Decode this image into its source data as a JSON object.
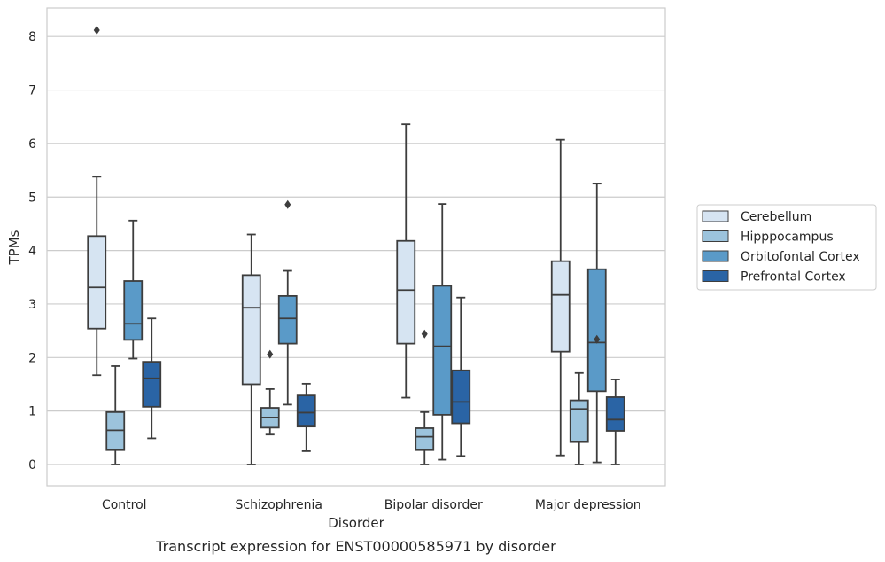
{
  "chart_data": {
    "type": "boxplot",
    "caption": "Transcript expression for ENST00000585971 by disorder",
    "xlabel": "Disorder",
    "ylabel": "TPMs",
    "ylim": [
      -0.4,
      8.55
    ],
    "yticks": [
      0,
      1,
      2,
      3,
      4,
      5,
      6,
      7,
      8
    ],
    "grid": true,
    "legend_position": "right",
    "categories": [
      "Control",
      "Schizophrenia",
      "Bipolar disorder",
      "Major depression"
    ],
    "series": [
      {
        "name": "Cerebellum",
        "color": "#d6e4f2",
        "boxes": [
          {
            "whislo": 1.67,
            "q1": 2.54,
            "med": 3.31,
            "q3": 4.27,
            "whishi": 5.38,
            "fliers": [
              8.12
            ]
          },
          {
            "whislo": 0.0,
            "q1": 1.5,
            "med": 2.93,
            "q3": 3.54,
            "whishi": 4.3,
            "fliers": []
          },
          {
            "whislo": 1.25,
            "q1": 2.26,
            "med": 3.26,
            "q3": 4.18,
            "whishi": 6.36,
            "fliers": []
          },
          {
            "whislo": 0.17,
            "q1": 2.11,
            "med": 3.17,
            "q3": 3.8,
            "whishi": 6.07,
            "fliers": []
          }
        ]
      },
      {
        "name": "Hipppocampus",
        "color": "#9cc3dc",
        "boxes": [
          {
            "whislo": 0.0,
            "q1": 0.27,
            "med": 0.64,
            "q3": 0.98,
            "whishi": 1.84,
            "fliers": []
          },
          {
            "whislo": 0.56,
            "q1": 0.69,
            "med": 0.88,
            "q3": 1.06,
            "whishi": 1.41,
            "fliers": [
              2.06
            ]
          },
          {
            "whislo": 0.0,
            "q1": 0.27,
            "med": 0.52,
            "q3": 0.68,
            "whishi": 0.98,
            "fliers": [
              2.44
            ]
          },
          {
            "whislo": 0.0,
            "q1": 0.42,
            "med": 1.04,
            "q3": 1.2,
            "whishi": 1.71,
            "fliers": []
          }
        ]
      },
      {
        "name": "Orbitofontal Cortex",
        "color": "#5a9ac8",
        "boxes": [
          {
            "whislo": 1.98,
            "q1": 2.33,
            "med": 2.63,
            "q3": 3.43,
            "whishi": 4.56,
            "fliers": []
          },
          {
            "whislo": 1.12,
            "q1": 2.26,
            "med": 2.73,
            "q3": 3.15,
            "whishi": 3.62,
            "fliers": [
              4.86
            ]
          },
          {
            "whislo": 0.09,
            "q1": 0.93,
            "med": 2.21,
            "q3": 3.34,
            "whishi": 4.87,
            "fliers": []
          },
          {
            "whislo": 0.04,
            "q1": 1.37,
            "med": 2.28,
            "q3": 3.65,
            "whishi": 5.25,
            "fliers": [
              2.34
            ]
          }
        ]
      },
      {
        "name": "Prefrontal Cortex",
        "color": "#2a64a5",
        "boxes": [
          {
            "whislo": 0.49,
            "q1": 1.08,
            "med": 1.61,
            "q3": 1.92,
            "whishi": 2.73,
            "fliers": []
          },
          {
            "whislo": 0.25,
            "q1": 0.71,
            "med": 0.97,
            "q3": 1.29,
            "whishi": 1.51,
            "fliers": []
          },
          {
            "whislo": 0.16,
            "q1": 0.77,
            "med": 1.17,
            "q3": 1.76,
            "whishi": 3.12,
            "fliers": []
          },
          {
            "whislo": 0.0,
            "q1": 0.63,
            "med": 0.84,
            "q3": 1.26,
            "whishi": 1.59,
            "fliers": []
          }
        ]
      }
    ]
  }
}
